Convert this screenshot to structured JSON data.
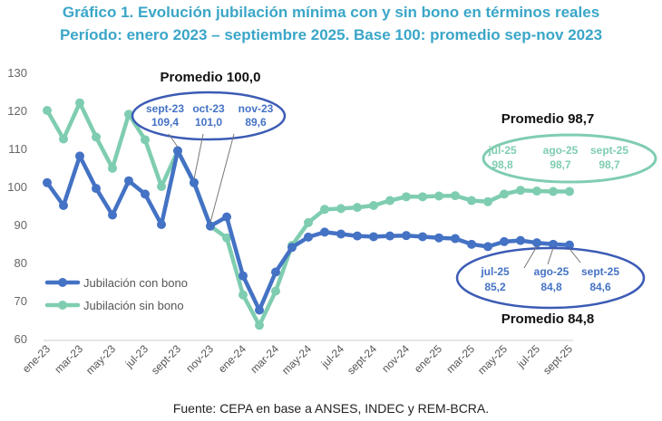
{
  "titles": {
    "line1": "Gráfico 1. Evolución jubilación mínima con y sin bono en términos reales",
    "line2": "Período: enero 2023 – septiembre 2025. Base 100: promedio sep-nov 2023"
  },
  "source": "Fuente: CEPA en base a ANSES, INDEC y REM-BCRA.",
  "colors": {
    "con_bono": "#4472c4",
    "sin_bono": "#7fcdb0",
    "title": "#3aa6c8",
    "ellipse_blue": "#3b5bb5",
    "ellipse_green": "#7fcdb0"
  },
  "chart_data": {
    "type": "line",
    "ylim": [
      60,
      130
    ],
    "yticks": [
      60,
      70,
      80,
      90,
      100,
      110,
      120,
      130
    ],
    "x": [
      "ene-23",
      "feb-23",
      "mar-23",
      "abr-23",
      "may-23",
      "jun-23",
      "jul-23",
      "ago-23",
      "sept-23",
      "oct-23",
      "nov-23",
      "dic-23",
      "ene-24",
      "feb-24",
      "mar-24",
      "abr-24",
      "may-24",
      "jun-24",
      "jul-24",
      "ago-24",
      "sept-24",
      "oct-24",
      "nov-24",
      "dic-24",
      "ene-25",
      "feb-25",
      "mar-25",
      "abr-25",
      "may-25",
      "jun-25",
      "jul-25",
      "ago-25",
      "sept-25"
    ],
    "xtick_labels": [
      "ene-23",
      "mar-23",
      "may-23",
      "jul-23",
      "sept-23",
      "nov-23",
      "ene-24",
      "mar-24",
      "may-24",
      "jul-24",
      "sept-24",
      "nov-24",
      "ene-25",
      "mar-25",
      "may-25",
      "jul-25",
      "sept-25"
    ],
    "series": [
      {
        "name": "Jubilación con bono",
        "values": [
          101,
          95,
          108,
          99.5,
          92.5,
          101.5,
          98,
          90,
          109.4,
          101,
          89.6,
          92,
          76.5,
          67.5,
          77.5,
          84,
          86.7,
          88,
          87.5,
          87,
          86.8,
          87,
          87.1,
          86.8,
          86.5,
          86.3,
          84.8,
          84.2,
          85.5,
          85.8,
          85.2,
          84.8,
          84.6
        ]
      },
      {
        "name": "Jubilación sin bono",
        "values": [
          120,
          112.5,
          122,
          113,
          104.8,
          119,
          112.3,
          100,
          109.4,
          101,
          89.6,
          86.5,
          71.5,
          63.5,
          72.5,
          84.5,
          90.5,
          94,
          94.2,
          94.5,
          95,
          96.3,
          97.3,
          97.3,
          97.5,
          97.6,
          96.3,
          96,
          98,
          99,
          98.8,
          98.7,
          98.7
        ]
      }
    ],
    "annotations": {
      "top": {
        "title": "Promedio 100,0",
        "items": [
          {
            "month": "sept-23",
            "value": "109,4"
          },
          {
            "month": "oct-23",
            "value": "101,0"
          },
          {
            "month": "nov-23",
            "value": "89,6"
          }
        ]
      },
      "sin_bono": {
        "title": "Promedio 98,7",
        "items": [
          {
            "month": "jul-25",
            "value": "98,8"
          },
          {
            "month": "ago-25",
            "value": "98,7"
          },
          {
            "month": "sept-25",
            "value": "98,7"
          }
        ]
      },
      "con_bono": {
        "title": "Promedio 84,8",
        "items": [
          {
            "month": "jul-25",
            "value": "85,2"
          },
          {
            "month": "ago-25",
            "value": "84,8"
          },
          {
            "month": "sept-25",
            "value": "84,6"
          }
        ]
      }
    },
    "legend": {
      "placement": "bottom-left"
    }
  }
}
